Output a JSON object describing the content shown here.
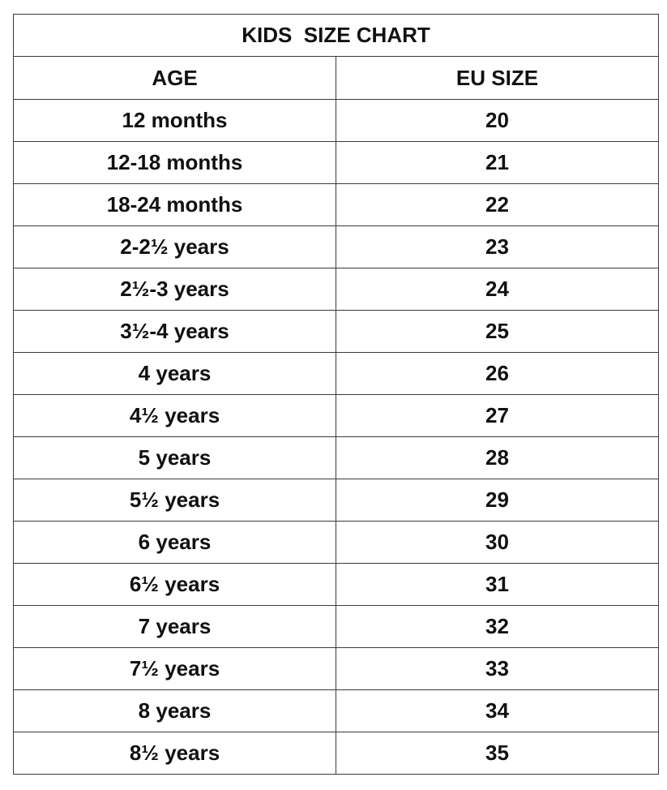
{
  "table": {
    "title": "KIDS  SIZE CHART",
    "headers": [
      "AGE",
      "EU SIZE"
    ],
    "rows": [
      [
        "12 months",
        20
      ],
      [
        "12-18 months",
        21
      ],
      [
        "18-24 months",
        22
      ],
      [
        "2-2½ years",
        23
      ],
      [
        "2½-3 years",
        24
      ],
      [
        "3½-4 years",
        25
      ],
      [
        "4 years",
        26
      ],
      [
        "4½ years",
        27
      ],
      [
        "5 years",
        28
      ],
      [
        "5½ years",
        29
      ],
      [
        "6 years",
        30
      ],
      [
        "6½ years",
        31
      ],
      [
        "7 years",
        32
      ],
      [
        "7½ years",
        33
      ],
      [
        "8 years",
        34
      ],
      [
        "8½ years",
        35
      ]
    ]
  }
}
